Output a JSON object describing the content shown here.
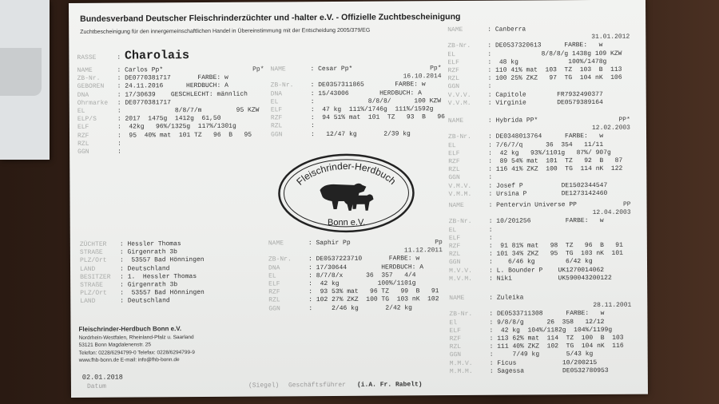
{
  "header": {
    "title": "Bundesverband Deutscher Fleischrinderzüchter und -halter e.V. - Offizielle Zuchtbescheinigung",
    "subtitle": "Zuchtbescheinigung für den innergemeinschaftlichen Handel in Übereinstimmung mit der Entscheidung 2005/379/EG"
  },
  "rasse": {
    "label": "RASSE",
    "value": "Charolais"
  },
  "animal": {
    "name_label": "NAME",
    "name": ": Carlos Pp*",
    "suffix": "Pp*",
    "rows": [
      {
        "label": "ZB-Nr.",
        "value": ": DE0770381717       FARBE: w"
      },
      {
        "label": "GEBOREN",
        "value": ": 24.11.2016      HERDBUCH: A"
      },
      {
        "label": "DNA",
        "value": ": 17/30639    GESCHLECHT: männlich"
      },
      {
        "label": "Ohrmarke",
        "value": ": DE0770381717"
      },
      {
        "label": "EL",
        "value": ":              8/8/7/m         95 KZW"
      },
      {
        "label": "ELP/S",
        "value": ": 2017  1475g  1412g  61,50"
      },
      {
        "label": "ELF",
        "value": ":  42kg   96%/1325g  117%/1301g"
      },
      {
        "label": "RZF",
        "value": ":  95  40% mat  101 TZ   96  B   95"
      },
      {
        "label": "RZL",
        "value": ":"
      },
      {
        "label": "GGN",
        "value": ":"
      }
    ]
  },
  "sire": {
    "name_label": "NAME",
    "name": ": Cesar Pp*",
    "suffix": "Pp*",
    "date": "16.10.2014",
    "rows": [
      {
        "label": "ZB-Nr.",
        "value": ": DE0357311865        FARBE: w"
      },
      {
        "label": "DNA",
        "value": ": 15/43006        HERDBUCH: A"
      },
      {
        "label": "EL",
        "value": ":              8/8/8/      100 KZW"
      },
      {
        "label": "ELF",
        "value": ":  47 kg  111%/1746g  111%/1592g"
      },
      {
        "label": "RZF",
        "value": ":  94 51% mat  101  TZ   93  B   96"
      },
      {
        "label": "RZL",
        "value": ":"
      },
      {
        "label": "GGN",
        "value": ":   12/47 kg       2/39 kg"
      }
    ]
  },
  "right_blocks": [
    {
      "name_label": "NAME",
      "name": ": Canberra",
      "suffix": "",
      "date": "31.01.2012",
      "rows": [
        {
          "label": "ZB-Nr.",
          "value": ": DE0537320613      FARBE:   w"
        },
        {
          "label": "EL",
          "value": ":             8/8/8/g 1438g 109 KZW"
        },
        {
          "label": "ELF",
          "value": ":  48 kg             100%/1478g"
        },
        {
          "label": "RZF",
          "value": ": 110 41% mat  103  TZ  103  B  113"
        },
        {
          "label": "RZL",
          "value": ": 100 25% ZKZ   97  TG  104 nK  106"
        },
        {
          "label": "GGN",
          "value": ":"
        },
        {
          "label": "V.V.V.",
          "value": ": Capitole        FR7932490377"
        },
        {
          "label": "V.V.M.",
          "value": ": Virginie        DE0579389164"
        }
      ]
    },
    {
      "name_label": "NAME",
      "name": ": Hybrida PP*",
      "suffix": "PP*",
      "date": "12.02.2003",
      "rows": [
        {
          "label": "ZB-Nr.",
          "value": ": DE0348013764      FARBE:   w"
        },
        {
          "label": "EL",
          "value": ": 7/6/7/q      36  354   11/11"
        },
        {
          "label": "ELF",
          "value": ":  42 kg   93%/1101g   87%/ 907g"
        },
        {
          "label": "RZF",
          "value": ":  89 54% mat  101  TZ   92  B   87"
        },
        {
          "label": "RZL",
          "value": ": 116 41% ZKZ  100  TG  114 nK  122"
        },
        {
          "label": "GGN",
          "value": ":"
        },
        {
          "label": "V.M.V.",
          "value": ": Josef P          DE1502344547"
        },
        {
          "label": "V.M.M.",
          "value": ": Ursina P         DE1273142460"
        }
      ]
    },
    {
      "name_label": "NAME",
      "name": ": Pentervin Universe PP",
      "suffix": "PP",
      "date": "12.04.2003",
      "rows": [
        {
          "label": "ZB-Nr.",
          "value": ": 10/201256         FARBE:   w"
        },
        {
          "label": "EL",
          "value": ":"
        },
        {
          "label": "ELF",
          "value": ":"
        },
        {
          "label": "RZF",
          "value": ":  91 81% mat   98  TZ   96  B   91"
        },
        {
          "label": "RZL",
          "value": ": 101 34% ZKZ   95  TG  103 nK  101"
        },
        {
          "label": "GGN",
          "value": ":    6/46 kg        6/42 kg"
        },
        {
          "label": "M.V.V.",
          "value": ": L. Bounder P    UK1270014062"
        },
        {
          "label": "M.V.M.",
          "value": ": Niki            UK590043200122"
        }
      ]
    },
    {
      "name_label": "NAME",
      "name": ": Zuleika",
      "suffix": "",
      "date": "28.11.2001",
      "rows": [
        {
          "label": "ZB-Nr.",
          "value": ": DE0533711308      FARBE:   w"
        },
        {
          "label": "El",
          "value": ": 9/8/8/g      26  358   12/12"
        },
        {
          "label": "ELF",
          "value": ":  42 kg  104%/1182g  104%/1199g"
        },
        {
          "label": "RZF",
          "value": ": 113 62% mat  114  TZ  100  B  103"
        },
        {
          "label": "RZL",
          "value": ": 111 40% ZKZ  102  TG  104 nK  116"
        },
        {
          "label": "GGN",
          "value": ":     7/49 kg       5/43 kg"
        },
        {
          "label": "M.M.V.",
          "value": ": Ficus            10/200215"
        },
        {
          "label": "M.M.M.",
          "value": ": Sagessa          DE0532780953"
        }
      ]
    }
  ],
  "breeder": {
    "rows": [
      {
        "label": "ZÜCHTER",
        "value": ": Hessler Thomas"
      },
      {
        "label": "STRAßE",
        "value": ": Girgenrath 3b"
      },
      {
        "label": "PLZ/Ort",
        "value": ":  53557 Bad Hönningen"
      },
      {
        "label": "LAND",
        "value": ": Deutschland"
      },
      {
        "label": "BESITZER",
        "value": ": 1.  Hessler Thomas"
      },
      {
        "label": "STRAßE",
        "value": ": Girgenrath 3b"
      },
      {
        "label": "PLZ/Ort",
        "value": ":  53557 Bad Hönningen"
      },
      {
        "label": "LAND",
        "value": ": Deutschland"
      }
    ]
  },
  "dam": {
    "name_label": "NAME",
    "name": ": Saphir Pp",
    "suffix": "Pp",
    "date": "11.12.2011",
    "rows": [
      {
        "label": "ZB-Nr.",
        "value": ": DE0537223710       FARBE: w"
      },
      {
        "label": "DNA",
        "value": ": 17/30644         HERDBUCH: A"
      },
      {
        "label": "EL",
        "value": ": 8/7/8/x      36  357   4/4"
      },
      {
        "label": "ELF",
        "value": ":  42 kg          100%/1101g"
      },
      {
        "label": "RZF",
        "value": ":  93 53% mat   96 TZ   99  B   91"
      },
      {
        "label": "RZL",
        "value": ": 102 27% ZKZ  100 TG  103 nK  102"
      },
      {
        "label": "GGN",
        "value": ":     2/46 kg       2/42 kg"
      }
    ]
  },
  "stamp": {
    "top": "Fleischrinder-Herdbuch",
    "bottom": "Bonn e.V."
  },
  "footer": {
    "org": "Fleischrinder-Herdbuch Bonn e.V.",
    "lines": [
      "Nordrhein-Westfalen, Rheinland-Pfalz u. Saarland",
      "53121 Bonn  Magdalenenstr. 25",
      "Telefon: 0228/6294799-0  Telefax: 0228/6294799-9",
      "www.fhb-bonn.de  E-mail: info@fhb-bonn.de"
    ],
    "date": "02.01.2018",
    "date_label": "Datum",
    "seal_label": "(Siegel)",
    "signer_label": "Geschäftsführer",
    "signer": "(i.A. Fr. Rabelt)"
  }
}
